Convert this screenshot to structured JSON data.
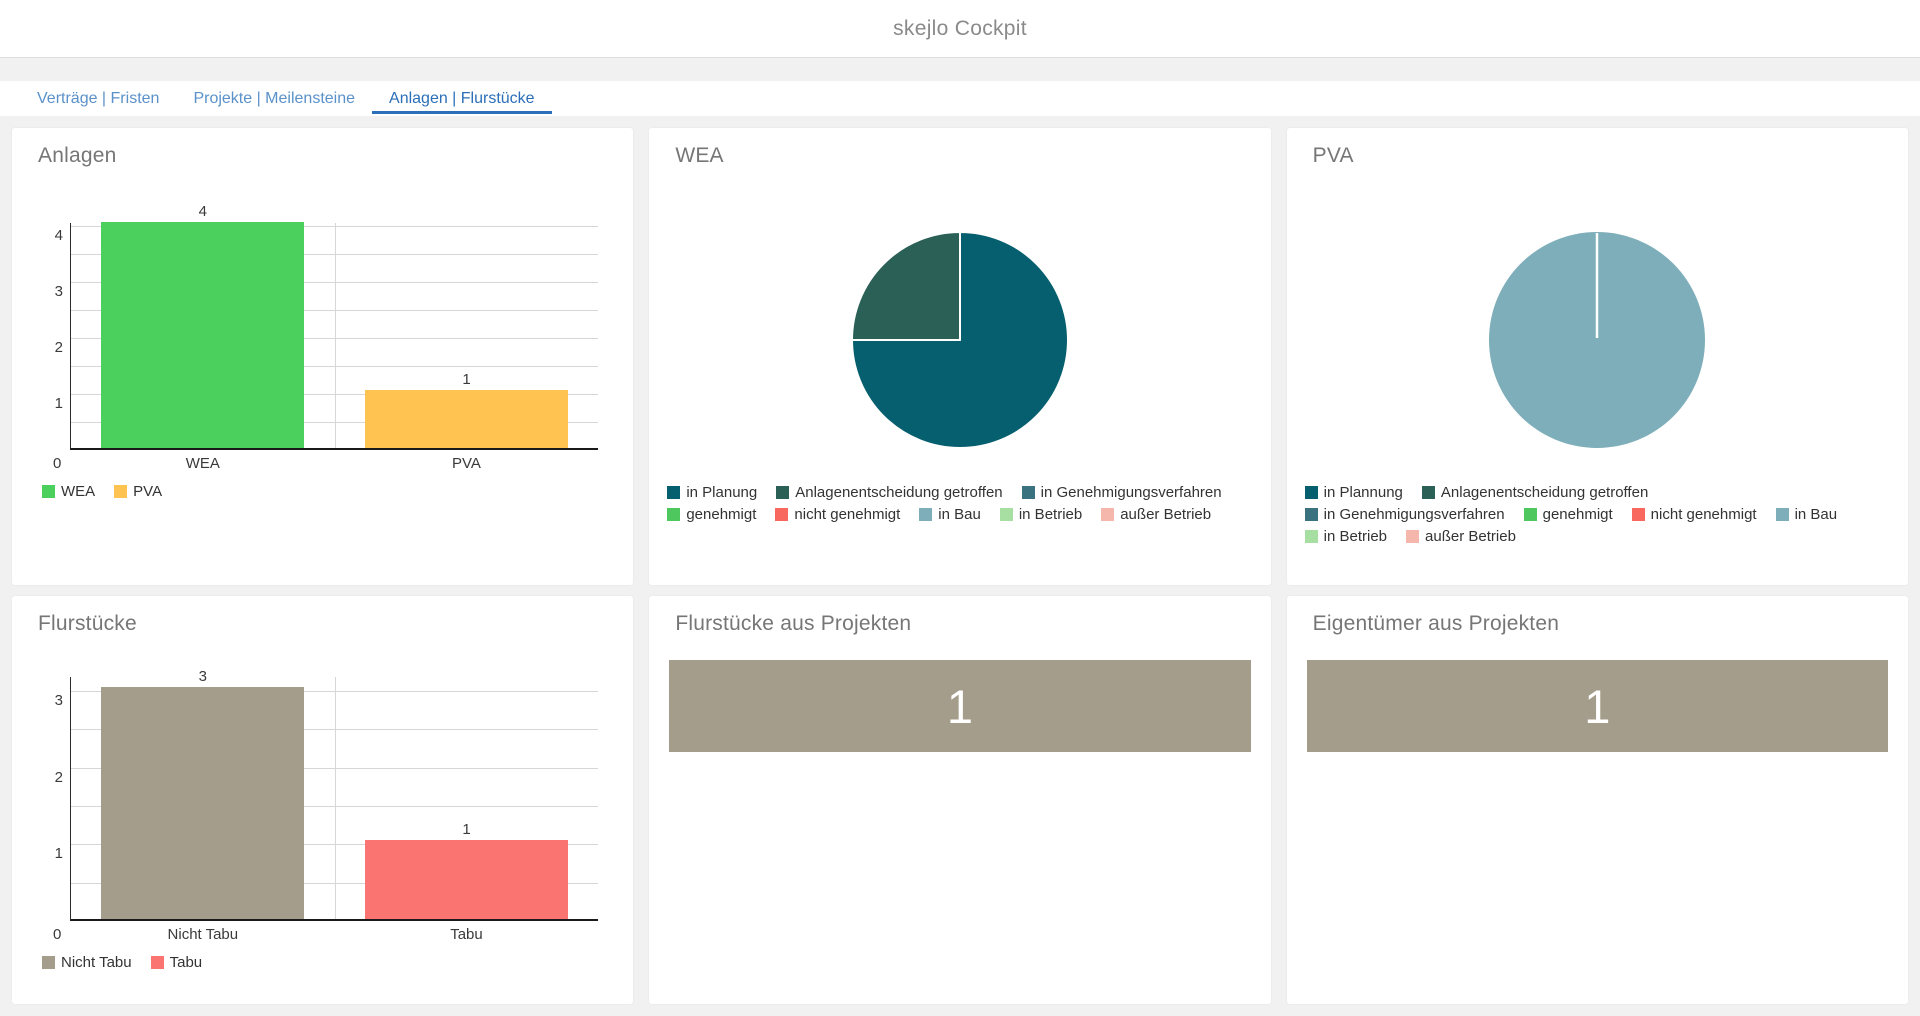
{
  "header": {
    "title": "skejlo Cockpit"
  },
  "tabs": [
    {
      "label": "Verträge | Fristen",
      "active": false
    },
    {
      "label": "Projekte | Meilensteine",
      "active": false
    },
    {
      "label": "Anlagen | Flurstücke",
      "active": true
    }
  ],
  "colors": {
    "accent_blue": "#2B6FB8",
    "tab_inactive_blue": "#5A91C9",
    "green": "#4BCF5D",
    "amber": "#FEC350",
    "taupe": "#A59D8B",
    "salmon": "#FA7472",
    "teal_dark": "#065F6E",
    "green_dark": "#2B6057",
    "teal_mid": "#3A7280",
    "green_bright": "#4EC75F",
    "red_bright": "#F9685F",
    "steel_blue": "#7EAEB9",
    "green_light": "#A7DFA2",
    "pink_light": "#F5B7AC"
  },
  "chart_data": [
    {
      "type": "bar",
      "title": "Anlagen",
      "categories": [
        "WEA",
        "PVA"
      ],
      "values": [
        4,
        1
      ],
      "data_labels": [
        "4",
        "1"
      ],
      "bar_colors": [
        "#4BCF5D",
        "#FEC350"
      ],
      "xlabel": "",
      "ylabel": "",
      "ylim": [
        0,
        4.05
      ],
      "yticks": [
        0,
        1,
        2,
        3,
        4
      ],
      "grid_step": 0.5,
      "grid": true,
      "legend_position": "bottom",
      "legend": [
        {
          "label": "WEA",
          "color": "#4BCF5D"
        },
        {
          "label": "PVA",
          "color": "#FEC350"
        }
      ]
    },
    {
      "type": "pie",
      "title": "WEA",
      "slices": [
        {
          "label": "in Planung",
          "value": 3,
          "color": "#065F6E"
        },
        {
          "label": "Anlagenentscheidung getroffen",
          "value": 1,
          "color": "#2B6057"
        }
      ],
      "start_angle_deg": -90,
      "direction": "clockwise",
      "legend_position": "bottom",
      "legend_rows": [
        [
          {
            "label": "in Planung",
            "color": "#065F6E"
          },
          {
            "label": "Anlagenentscheidung getroffen",
            "color": "#2B6057"
          },
          {
            "label": "in Genehmigungsverfahren",
            "color": "#3A7280"
          }
        ],
        [
          {
            "label": "genehmigt",
            "color": "#4EC75F"
          },
          {
            "label": "nicht genehmigt",
            "color": "#F9685F"
          },
          {
            "label": "in Bau",
            "color": "#7EAEB9"
          },
          {
            "label": "in Betrieb",
            "color": "#A7DFA2"
          },
          {
            "label": "außer Betrieb",
            "color": "#F5B7AC"
          }
        ]
      ]
    },
    {
      "type": "pie",
      "title": "PVA",
      "slices": [
        {
          "label": "in Bau",
          "value": 1,
          "color": "#7EAEB9"
        }
      ],
      "start_angle_deg": -90,
      "direction": "clockwise",
      "legend_position": "bottom",
      "legend_rows": [
        [
          {
            "label": "in Plannung",
            "color": "#065F6E"
          },
          {
            "label": "Anlagenentscheidung getroffen",
            "color": "#2B6057"
          }
        ],
        [
          {
            "label": "in Genehmigungsverfahren",
            "color": "#3A7280"
          },
          {
            "label": "genehmigt",
            "color": "#4EC75F"
          },
          {
            "label": "nicht genehmigt",
            "color": "#F9685F"
          },
          {
            "label": "in Bau",
            "color": "#7EAEB9"
          }
        ],
        [
          {
            "label": "in Betrieb",
            "color": "#A7DFA2"
          },
          {
            "label": "außer Betrieb",
            "color": "#F5B7AC"
          }
        ]
      ]
    },
    {
      "type": "bar",
      "title": "Flurstücke",
      "categories": [
        "Nicht Tabu",
        "Tabu"
      ],
      "values": [
        3,
        1
      ],
      "data_labels": [
        "3",
        "1"
      ],
      "bar_colors": [
        "#A59D8B",
        "#FA7472"
      ],
      "xlabel": "",
      "ylabel": "",
      "ylim": [
        0,
        3.18
      ],
      "yticks": [
        0,
        1,
        2,
        3
      ],
      "grid_step": 0.5,
      "grid": true,
      "legend_position": "bottom",
      "legend": [
        {
          "label": "Nicht Tabu",
          "color": "#A59D8B"
        },
        {
          "label": "Tabu",
          "color": "#FA7472"
        }
      ]
    },
    {
      "type": "bar",
      "variant": "kpi",
      "title": "Flurstücke aus Projekten",
      "categories": [
        ""
      ],
      "values": [
        1
      ],
      "value_label": "1",
      "color": "#A59D8B"
    },
    {
      "type": "bar",
      "variant": "kpi",
      "title": "Eigentümer aus Projekten",
      "categories": [
        ""
      ],
      "values": [
        1
      ],
      "value_label": "1",
      "color": "#A59D8B"
    }
  ]
}
